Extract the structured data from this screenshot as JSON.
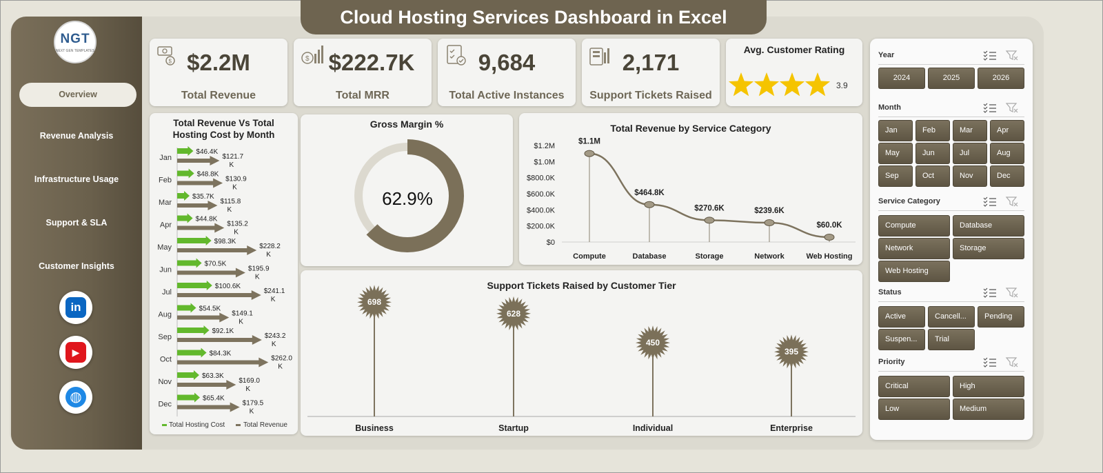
{
  "title": "Cloud Hosting Services Dashboard in Excel",
  "logo": {
    "text": "NGT",
    "subtext": "NEXT GEN TEMPLATES"
  },
  "nav": [
    {
      "label": "Overview",
      "active": true
    },
    {
      "label": "Revenue Analysis"
    },
    {
      "label": "Infrastructure Usage"
    },
    {
      "label": "Support & SLA"
    },
    {
      "label": "Customer Insights"
    }
  ],
  "social": [
    {
      "name": "linkedin",
      "glyph": "in",
      "color": "#0a66c2"
    },
    {
      "name": "youtube",
      "glyph": "▶",
      "color": "#e0161d"
    },
    {
      "name": "web",
      "glyph": "◍",
      "color": "#1e88e5"
    }
  ],
  "kpis": [
    {
      "value": "$2.2M",
      "label": "Total Revenue",
      "icon": "money-icon"
    },
    {
      "value": "$222.7K",
      "label": "Total MRR",
      "icon": "money-chart-icon"
    },
    {
      "value": "9,684",
      "label": "Total Active Instances",
      "icon": "checklist-icon"
    },
    {
      "value": "2,171",
      "label": "Support Tickets Raised",
      "icon": "tickets-icon"
    }
  ],
  "rating": {
    "title": "Avg. Customer Rating",
    "value": "3.9",
    "stars": 4
  },
  "charts": {
    "monthly": {
      "title_line1": "Total Revenue Vs Total",
      "title_line2": "Hosting Cost by Month",
      "legend_cost": "Total Hosting Cost",
      "legend_revenue": "Total Revenue"
    },
    "gross_margin": {
      "title": "Gross Margin %",
      "label": "62.9%"
    },
    "service": {
      "title": "Total Revenue  by Service Category"
    },
    "tier": {
      "title": "Support Tickets Raised by Customer Tier"
    }
  },
  "chart_data": [
    {
      "type": "bar",
      "orientation": "horizontal",
      "categories": [
        "Jan",
        "Feb",
        "Mar",
        "Apr",
        "May",
        "Jun",
        "Jul",
        "Aug",
        "Sep",
        "Oct",
        "Nov",
        "Dec"
      ],
      "series": [
        {
          "name": "Total Hosting Cost",
          "values": [
            46.4,
            48.8,
            35.7,
            44.8,
            98.3,
            70.5,
            100.6,
            54.5,
            92.1,
            84.3,
            63.3,
            65.4
          ],
          "labels": [
            "$46.4K",
            "$48.8K",
            "$35.7K",
            "$44.8K",
            "$98.3K",
            "$70.5K",
            "$100.6K",
            "$54.5K",
            "$92.1K",
            "$84.3K",
            "$63.3K",
            "$65.4K"
          ],
          "color": "#62b82c"
        },
        {
          "name": "Total Revenue",
          "values": [
            121.7,
            130.9,
            115.8,
            135.2,
            228.2,
            195.9,
            241.1,
            149.1,
            243.2,
            262.0,
            169.0,
            179.5
          ],
          "labels": [
            "$121.7 K",
            "$130.9 K",
            "$115.8 K",
            "$135.2 K",
            "$228.2 K",
            "$195.9 K",
            "$241.1 K",
            "$149.1 K",
            "$243.2 K",
            "$262.0 K",
            "$169.0 K",
            "$179.5 K"
          ],
          "color": "#7d735e"
        }
      ],
      "unit": "K"
    },
    {
      "type": "pie",
      "variant": "donut",
      "values": [
        62.9,
        37.1
      ],
      "colors": [
        "#7b7059",
        "#dcd9cf"
      ]
    },
    {
      "type": "line",
      "categories": [
        "Compute",
        "Database",
        "Storage",
        "Network",
        "Web Hosting"
      ],
      "values": [
        1100,
        464.8,
        270.6,
        239.6,
        60.0
      ],
      "labels": [
        "$1.1M",
        "$464.8K",
        "$270.6K",
        "$239.6K",
        "$60.0K"
      ],
      "yticks": [
        "$0",
        "$200.0K",
        "$400.0K",
        "$600.0K",
        "$800.0K",
        "$1.0M",
        "$1.2M"
      ],
      "ylim": [
        0,
        1200
      ],
      "unit": "K"
    },
    {
      "type": "bar",
      "variant": "lollipop",
      "categories": [
        "Business",
        "Startup",
        "Individual",
        "Enterprise"
      ],
      "values": [
        698,
        628,
        450,
        395
      ],
      "ylim": [
        0,
        800
      ]
    }
  ],
  "slicers": [
    {
      "title": "Year",
      "items": [
        "2024",
        "2025",
        "2026"
      ]
    },
    {
      "title": "Month",
      "items": [
        "Jan",
        "Feb",
        "Mar",
        "Apr",
        "May",
        "Jun",
        "Jul",
        "Aug",
        "Sep",
        "Oct",
        "Nov",
        "Dec"
      ]
    },
    {
      "title": "Service Category",
      "items": [
        "Compute",
        "Database",
        "Network",
        "Storage",
        "Web Hosting"
      ]
    },
    {
      "title": "Status",
      "items": [
        "Active",
        "Cancell...",
        "Pending",
        "Suspen...",
        "Trial"
      ]
    },
    {
      "title": "Priority",
      "items": [
        "Critical",
        "High",
        "Low",
        "Medium"
      ]
    }
  ]
}
